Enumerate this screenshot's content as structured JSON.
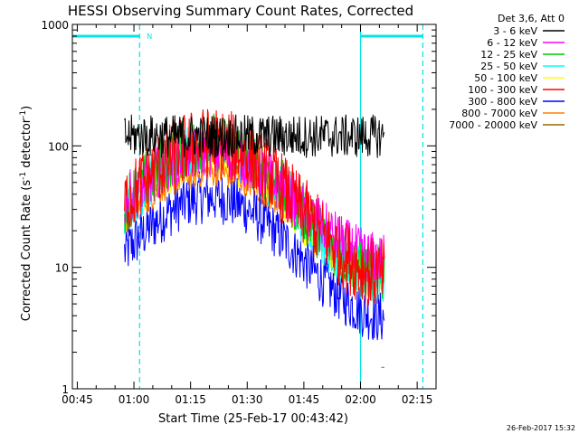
{
  "chart_data": {
    "type": "line",
    "title": "HESSI Observing Summary Count Rates, Corrected",
    "xlabel": "Start Time (25-Feb-17 00:43:42)",
    "ylabel_main": "Corrected Count Rate (s",
    "ylabel_sup1": "-1",
    "ylabel_mid": " detector",
    "ylabel_sup2": "-1",
    "ylabel_end": ")",
    "yscale": "log",
    "xlim_minutes": [
      43.7,
      140
    ],
    "ylim": [
      1,
      1000
    ],
    "x_ticks": [
      {
        "t": 45,
        "label": "00:45"
      },
      {
        "t": 60,
        "label": "01:00"
      },
      {
        "t": 75,
        "label": "01:15"
      },
      {
        "t": 90,
        "label": "01:30"
      },
      {
        "t": 105,
        "label": "01:45"
      },
      {
        "t": 120,
        "label": "02:00"
      },
      {
        "t": 135,
        "label": "02:15"
      }
    ],
    "y_ticks": [
      {
        "v": 1,
        "label": "1"
      },
      {
        "v": 10,
        "label": "10"
      },
      {
        "v": 100,
        "label": "100"
      },
      {
        "v": 1000,
        "label": "1000"
      }
    ],
    "legend_title": "Det 3,6, Att 0",
    "legend_position": "outside-right",
    "series": [
      {
        "name": "3 - 6 keV",
        "color": "#000000",
        "mean": 120,
        "amp": 0.0,
        "noise": 0.18,
        "start": 57.5,
        "end": 126.3
      },
      {
        "name": "6 - 12 keV",
        "color": "#ff00ff",
        "mean": 32,
        "amp": 0.45,
        "noise": 0.22,
        "start": 57.5,
        "end": 126.3
      },
      {
        "name": "12 - 25 keV",
        "color": "#00cc00",
        "mean": 30,
        "amp": 0.55,
        "noise": 0.25,
        "start": 57.5,
        "end": 126.3
      },
      {
        "name": "25 - 50 keV",
        "color": "#00ffff",
        "mean": 27,
        "amp": 0.55,
        "noise": 0.22,
        "start": 57.5,
        "end": 126.3
      },
      {
        "name": "50 - 100 keV",
        "color": "#ffff00",
        "mean": 26,
        "amp": 0.5,
        "noise": 0.2,
        "start": 57.5,
        "end": 126.3
      },
      {
        "name": "100 - 300 keV",
        "color": "#ff0000",
        "mean": 30,
        "amp": 0.55,
        "noise": 0.3,
        "start": 57.5,
        "end": 126.3
      },
      {
        "name": "300 - 800 keV",
        "color": "#0000ff",
        "mean": 12,
        "amp": 0.5,
        "noise": 0.22,
        "start": 57.5,
        "end": 126.3
      },
      {
        "name": "800 - 7000 keV",
        "color": "#ff8000",
        "mean": 24,
        "amp": 0.4,
        "noise": 0.12,
        "start": 57.5,
        "end": 126.3
      },
      {
        "name": "7000 - 20000 keV",
        "color": "#996600",
        "mean": 1.5,
        "amp": 0.0,
        "noise": 0.0,
        "start": 125.5,
        "end": 126.3
      }
    ],
    "night_markers": [
      {
        "t": 61.5,
        "style": "dashed"
      },
      {
        "t": 120.0,
        "style": "solid"
      },
      {
        "t": 136.5,
        "style": "dashed"
      }
    ],
    "saa_marker_label": "N",
    "saa_bars": [
      [
        43.7,
        61.5
      ],
      [
        120.0,
        136.5
      ]
    ],
    "saa_level": 800
  },
  "footer": {
    "timestamp": "26-Feb-2017 15:32"
  }
}
